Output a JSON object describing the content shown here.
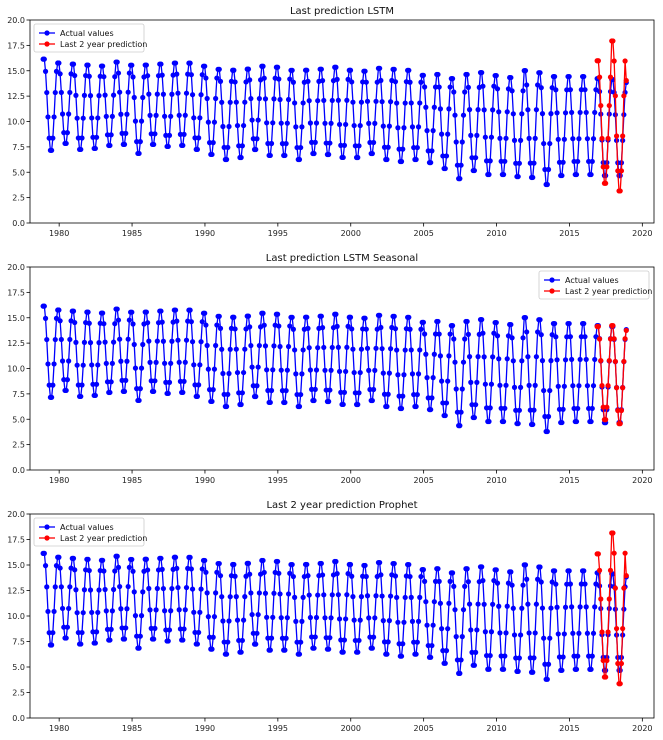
{
  "chart_data": [
    {
      "type": "line",
      "title": "Last prediction LSTM",
      "xlabel": "",
      "ylabel": "",
      "xlim": [
        1978.0,
        2020.8
      ],
      "ylim": [
        0.0,
        20.0
      ],
      "xticks": [
        1980,
        1985,
        1990,
        1995,
        2000,
        2005,
        2010,
        2015,
        2020
      ],
      "yticks": [
        0.0,
        2.5,
        5.0,
        7.5,
        10.0,
        12.5,
        15.0,
        17.5,
        20.0
      ],
      "grid": false,
      "legend": "top-left",
      "series": [
        {
          "name": "Actual values",
          "color": "#0000ff",
          "x_start": 1978.9,
          "x_end": 2018.9,
          "max": [
            16.3,
            15.9,
            15.8,
            15.7,
            15.6,
            16.0,
            15.7,
            15.7,
            15.8,
            15.9,
            15.9,
            15.6,
            15.3,
            15.2,
            15.3,
            15.6,
            15.5,
            15.2,
            15.2,
            15.3,
            15.5,
            15.2,
            15.1,
            15.4,
            15.3,
            15.2,
            14.7,
            14.8,
            14.4,
            14.8,
            15.0,
            14.7,
            14.5,
            15.2,
            15.0,
            14.6,
            14.6,
            14.6,
            14.4,
            14.3,
            14.0
          ],
          "min": [
            7.0,
            7.7,
            7.1,
            7.2,
            7.5,
            7.6,
            6.7,
            7.6,
            7.4,
            7.5,
            7.1,
            6.6,
            6.1,
            6.3,
            7.1,
            6.5,
            6.5,
            6.1,
            6.7,
            6.6,
            6.3,
            6.3,
            6.7,
            6.1,
            5.9,
            6.1,
            5.8,
            5.2,
            4.2,
            5.0,
            4.6,
            4.6,
            4.4,
            4.3,
            3.6,
            4.5,
            4.6,
            4.6,
            4.5,
            4.5,
            4.4
          ]
        },
        {
          "name": "Last 2 year prediction",
          "color": "#ff0000",
          "x_start": 2016.9,
          "x_end": 2018.9,
          "max": [
            16.2,
            18.2,
            14.2
          ],
          "min": [
            3.7,
            2.9,
            4.6
          ]
        }
      ]
    },
    {
      "type": "line",
      "title": "Last prediction LSTM Seasonal",
      "xlabel": "",
      "ylabel": "",
      "xlim": [
        1978.0,
        2020.8
      ],
      "ylim": [
        0.0,
        20.0
      ],
      "xticks": [
        1980,
        1985,
        1990,
        1995,
        2000,
        2005,
        2010,
        2015,
        2020
      ],
      "yticks": [
        0.0,
        2.5,
        5.0,
        7.5,
        10.0,
        12.5,
        15.0,
        17.5,
        20.0
      ],
      "grid": false,
      "legend": "top-right",
      "series": [
        {
          "name": "Actual values",
          "color": "#0000ff",
          "x_start": 1978.9,
          "x_end": 2018.9,
          "max": [
            16.3,
            15.9,
            15.8,
            15.7,
            15.6,
            16.0,
            15.7,
            15.7,
            15.8,
            15.9,
            15.9,
            15.6,
            15.3,
            15.2,
            15.3,
            15.6,
            15.5,
            15.2,
            15.2,
            15.3,
            15.5,
            15.2,
            15.1,
            15.4,
            15.3,
            15.2,
            14.7,
            14.8,
            14.4,
            14.8,
            15.0,
            14.7,
            14.5,
            15.2,
            15.0,
            14.6,
            14.6,
            14.6,
            14.4,
            14.3,
            14.0
          ],
          "min": [
            7.0,
            7.7,
            7.1,
            7.2,
            7.5,
            7.6,
            6.7,
            7.6,
            7.4,
            7.5,
            7.1,
            6.6,
            6.1,
            6.3,
            7.1,
            6.5,
            6.5,
            6.1,
            6.7,
            6.6,
            6.3,
            6.3,
            6.7,
            6.1,
            5.9,
            6.1,
            5.8,
            5.2,
            4.2,
            5.0,
            4.6,
            4.6,
            4.4,
            4.3,
            3.6,
            4.5,
            4.6,
            4.6,
            4.5,
            4.5,
            4.4
          ]
        },
        {
          "name": "Last 2 year prediction",
          "color": "#ff0000",
          "x_start": 2016.9,
          "x_end": 2018.9,
          "max": [
            14.3,
            14.4,
            13.9
          ],
          "min": [
            4.8,
            4.4,
            4.9
          ]
        }
      ]
    },
    {
      "type": "line",
      "title": "Last 2 year prediction Prophet",
      "xlabel": "",
      "ylabel": "",
      "xlim": [
        1978.0,
        2020.8
      ],
      "ylim": [
        0.0,
        20.0
      ],
      "xticks": [
        1980,
        1985,
        1990,
        1995,
        2000,
        2005,
        2010,
        2015,
        2020
      ],
      "yticks": [
        0.0,
        2.5,
        5.0,
        7.5,
        10.0,
        12.5,
        15.0,
        17.5,
        20.0
      ],
      "grid": false,
      "legend": "top-left",
      "series": [
        {
          "name": "Actual values",
          "color": "#0000ff",
          "x_start": 1978.9,
          "x_end": 2018.9,
          "max": [
            16.3,
            15.9,
            15.8,
            15.7,
            15.6,
            16.0,
            15.7,
            15.7,
            15.8,
            15.9,
            15.9,
            15.6,
            15.3,
            15.2,
            15.3,
            15.6,
            15.5,
            15.2,
            15.2,
            15.3,
            15.5,
            15.2,
            15.1,
            15.4,
            15.3,
            15.2,
            14.7,
            14.8,
            14.4,
            14.8,
            15.0,
            14.7,
            14.5,
            15.2,
            15.0,
            14.6,
            14.6,
            14.6,
            14.4,
            14.3,
            14.0
          ],
          "min": [
            7.0,
            7.7,
            7.1,
            7.2,
            7.5,
            7.6,
            6.7,
            7.6,
            7.4,
            7.5,
            7.1,
            6.6,
            6.1,
            6.3,
            7.1,
            6.5,
            6.5,
            6.1,
            6.7,
            6.6,
            6.3,
            6.3,
            6.7,
            6.1,
            5.9,
            6.1,
            5.8,
            5.2,
            4.2,
            5.0,
            4.6,
            4.6,
            4.4,
            4.3,
            3.6,
            4.5,
            4.6,
            4.6,
            4.5,
            4.5,
            4.4
          ]
        },
        {
          "name": "Last 2 year prediction",
          "color": "#ff0000",
          "x_start": 2016.9,
          "x_end": 2018.9,
          "max": [
            16.3,
            18.4,
            14.1
          ],
          "min": [
            3.8,
            3.1,
            5.6
          ]
        }
      ]
    }
  ]
}
